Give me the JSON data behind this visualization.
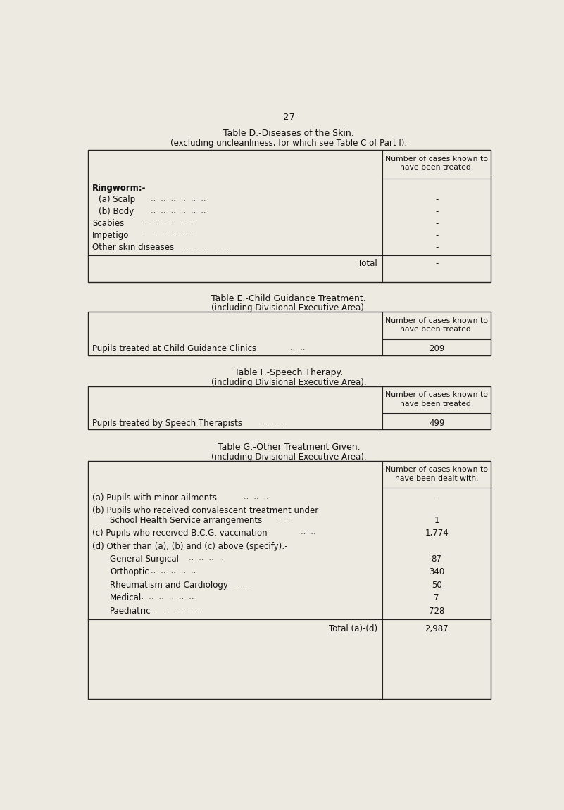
{
  "bg_color": "#edeae2",
  "text_color": "#111111",
  "page_number": "27",
  "table_d": {
    "title1": "Table D.-Diseases of the Skin.",
    "title2": "(excluding uncleanliness, for which see Table C of Part I).",
    "col_header1": "Number of cases known to",
    "col_header2": "have been treated.",
    "rows": [
      {
        "label": "Ringworm:-",
        "indent": false,
        "value": null,
        "dots": false,
        "bold": true
      },
      {
        "label": "   (a) Scalp",
        "indent": true,
        "value": "-",
        "dots": true
      },
      {
        "label": "   (b) Body",
        "indent": true,
        "value": "-",
        "dots": true
      },
      {
        "label": "Scabies",
        "indent": false,
        "value": "-",
        "dots": true
      },
      {
        "label": "Impetigo",
        "indent": false,
        "value": "-",
        "dots": true
      },
      {
        "label": "Other skin diseases",
        "indent": false,
        "value": "-",
        "dots": true
      }
    ],
    "total_label": "Total",
    "total_value": "-"
  },
  "table_e": {
    "title1": "Table E.-Child Guidance Treatment.",
    "title2": "(including Divisional Executive Area).",
    "col_header1": "Number of cases known to",
    "col_header2": "have been treated.",
    "rows": [
      {
        "label": "Pupils treated at Child Guidance Clinics",
        "value": "209",
        "dots": true
      }
    ]
  },
  "table_f": {
    "title1": "Table F.-Speech Therapy.",
    "title2": "(including Divisional Executive Area).",
    "col_header1": "Number of cases known to",
    "col_header2": "have been treated.",
    "rows": [
      {
        "label": "Pupils treated by Speech Therapists",
        "value": "499",
        "dots": true
      }
    ]
  },
  "table_g": {
    "title1": "Table G.-Other Treatment Given.",
    "title2": "(including Divisional Executive Area).",
    "col_header1": "Number of cases known to",
    "col_header2": "have been dealt with.",
    "rows": [
      {
        "label": "(a) Pupils with minor ailments",
        "indent": false,
        "value": "-",
        "dots": true,
        "line2": null
      },
      {
        "label": "(b) Pupils who received convalescent treatment under",
        "indent": false,
        "value": null,
        "dots": false,
        "line2": "     School Health Service arrangements",
        "line2_dots": true,
        "line2_value": "1"
      },
      {
        "label": "(c) Pupils who received B.C.G. vaccination",
        "indent": false,
        "value": "1,774",
        "dots": true,
        "line2": null
      },
      {
        "label": "(d) Other than (a), (b) and (c) above (specify):-",
        "indent": false,
        "value": null,
        "dots": false,
        "line2": null
      },
      {
        "label": "     General Surgical",
        "indent": true,
        "value": "87",
        "dots": true,
        "line2": null
      },
      {
        "label": "     Orthoptic",
        "indent": true,
        "value": "340",
        "dots": true,
        "line2": null
      },
      {
        "label": "     Rheumatism and Cardiology",
        "indent": true,
        "value": "50",
        "dots": true,
        "line2": null
      },
      {
        "label": "     Medical",
        "indent": true,
        "value": "7",
        "dots": true,
        "line2": null
      },
      {
        "label": "     Paediatric",
        "indent": true,
        "value": "728",
        "dots": true,
        "line2": null
      }
    ],
    "total_label": "Total (a)-(d)",
    "total_value": "2,987"
  }
}
